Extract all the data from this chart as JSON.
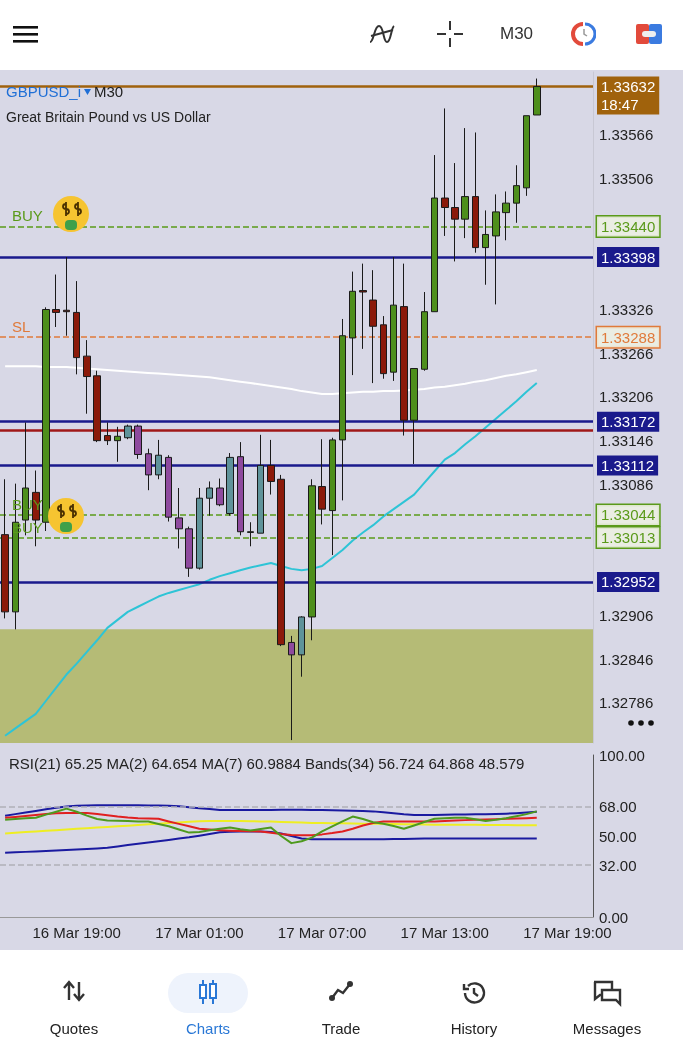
{
  "chart_data": [
    {
      "type": "candlestick",
      "title": "GBPUSD_i",
      "subtitle": "Great Britain Pound vs US Dollar",
      "annotations": [
        "M30",
        "M30",
        "Quotes",
        "Charts",
        "Trade",
        "History",
        "Messages",
        "BUY",
        "SL",
        "BUY",
        "BUY"
      ],
      "categories": [
        null,
        null,
        null,
        null,
        null,
        null,
        null,
        null,
        null,
        null,
        null,
        null,
        null,
        null,
        null,
        null,
        null,
        null,
        null,
        null,
        null,
        null,
        null,
        null,
        null,
        null,
        null,
        null,
        null,
        null,
        null,
        null,
        null,
        null,
        null,
        null,
        null,
        null,
        null,
        null,
        null,
        null,
        null,
        null,
        null,
        null,
        null,
        null,
        null,
        null,
        null,
        null,
        null,
        null,
        null,
        null,
        null,
        null
      ],
      "ohlc": [
        [
          1.33017,
          1.33093,
          1.32902,
          1.32911
        ],
        [
          1.32911,
          1.33087,
          1.32887,
          1.33034
        ],
        [
          1.33037,
          1.33171,
          1.33016,
          1.33081
        ],
        [
          1.33075,
          1.33105,
          1.33001,
          1.33037
        ],
        [
          1.33034,
          1.33329,
          1.33022,
          1.33326
        ],
        [
          1.33326,
          1.33374,
          1.33302,
          1.33322
        ],
        [
          1.33325,
          1.33398,
          1.3329,
          1.33323
        ],
        [
          1.33322,
          1.33365,
          1.33237,
          1.3326
        ],
        [
          1.33262,
          1.33284,
          1.33183,
          1.33234
        ],
        [
          1.33235,
          1.33242,
          1.33144,
          1.33146
        ],
        [
          1.33153,
          1.33171,
          1.3314,
          1.33146
        ],
        [
          1.33146,
          1.33165,
          1.33117,
          1.33152
        ],
        [
          1.3315,
          1.33168,
          1.33148,
          1.33166
        ],
        [
          1.33166,
          1.33168,
          1.33121,
          1.33127
        ],
        [
          1.33128,
          1.33135,
          1.33078,
          1.33099
        ],
        [
          1.33099,
          1.33147,
          1.33093,
          1.33126
        ],
        [
          1.33123,
          1.33126,
          1.33035,
          1.33041
        ],
        [
          1.3304,
          1.33081,
          1.32998,
          1.33025
        ],
        [
          1.33025,
          1.33028,
          1.32959,
          1.32971
        ],
        [
          1.32971,
          1.33081,
          1.32969,
          1.33067
        ],
        [
          1.33067,
          1.3309,
          1.33043,
          1.33081
        ],
        [
          1.33081,
          1.33094,
          1.33056,
          1.33058
        ],
        [
          1.33046,
          1.33129,
          1.33043,
          1.33123
        ],
        [
          1.33124,
          1.33144,
          1.33016,
          1.33021
        ],
        [
          1.3302,
          1.33034,
          1.33001,
          1.33021
        ],
        [
          1.33019,
          1.33154,
          1.33019,
          1.33112
        ],
        [
          1.33112,
          1.33147,
          1.33072,
          1.3309
        ],
        [
          1.33093,
          1.33099,
          1.32864,
          1.32866
        ],
        [
          1.32869,
          1.32878,
          1.32735,
          1.32852
        ],
        [
          1.32852,
          1.32905,
          1.32822,
          1.32904
        ],
        [
          1.32904,
          1.33093,
          1.32872,
          1.33084
        ],
        [
          1.33083,
          1.33148,
          1.33031,
          1.33052
        ],
        [
          1.3305,
          1.3315,
          1.32989,
          1.33147
        ],
        [
          1.33147,
          1.33313,
          1.33064,
          1.3329
        ],
        [
          1.33287,
          1.33378,
          1.33236,
          1.33351
        ],
        [
          1.33352,
          1.33389,
          1.33272,
          1.3335
        ],
        [
          1.33339,
          1.3338,
          1.33225,
          1.33303
        ],
        [
          1.33305,
          1.33317,
          1.33231,
          1.33238
        ],
        [
          1.3324,
          1.33398,
          1.33228,
          1.33332
        ],
        [
          1.3333,
          1.33389,
          1.33153,
          1.33174
        ],
        [
          1.33174,
          1.33245,
          1.33114,
          1.33245
        ],
        [
          1.33244,
          1.3335,
          1.33242,
          1.33323
        ],
        [
          1.33323,
          1.33538,
          1.33323,
          1.33479
        ],
        [
          1.33479,
          1.33602,
          1.33427,
          1.33466
        ],
        [
          1.33466,
          1.33527,
          1.33392,
          1.3345
        ],
        [
          1.3345,
          1.33575,
          1.33424,
          1.33481
        ],
        [
          1.33481,
          1.33569,
          1.33404,
          1.33411
        ],
        [
          1.33411,
          1.33462,
          1.3336,
          1.33429
        ],
        [
          1.33427,
          1.33484,
          1.33333,
          1.3346
        ],
        [
          1.33459,
          1.33488,
          1.33421,
          1.33472
        ],
        [
          1.33472,
          1.33524,
          1.33445,
          1.33496
        ],
        [
          1.33493,
          1.33592,
          1.33482,
          1.33592
        ],
        [
          1.33593,
          1.33643,
          1.33593,
          1.33632
        ],
        null,
        null,
        null,
        null,
        null
      ],
      "colors": [
        "#8b1a0a",
        "#4e8f1c",
        "#4e8f1c",
        "#8b1a0a",
        "#4e8f1c",
        "#8b1a0a",
        "#8b1a0a",
        "#8b1a0a",
        "#8b1a0a",
        "#8b1a0a",
        "#8b1a0a",
        "#4e8f1c",
        "#5f939a",
        "#8e4a9e",
        "#8e4a9e",
        "#5f939a",
        "#8e4a9e",
        "#8e4a9e",
        "#8e4a9e",
        "#5f939a",
        "#5f939a",
        "#8e4a9e",
        "#5f939a",
        "#8e4a9e",
        "#5f939a",
        "#5f939a",
        "#8b1a0a",
        "#8b1a0a",
        "#8e4a9e",
        "#5f939a",
        "#4e8f1c",
        "#8b1a0a",
        "#4e8f1c",
        "#4e8f1c",
        "#4e8f1c",
        "#8b1a0a",
        "#8b1a0a",
        "#8b1a0a",
        "#4e8f1c",
        "#8b1a0a",
        "#4e8f1c",
        "#4e8f1c",
        "#4e8f1c",
        "#8b1a0a",
        "#8b1a0a",
        "#4e8f1c",
        "#8b1a0a",
        "#4e8f1c",
        "#4e8f1c",
        "#4e8f1c",
        "#4e8f1c",
        "#4e8f1c",
        "#4e8f1c",
        null,
        null,
        null,
        null,
        null
      ],
      "series": [
        {
          "type": "line",
          "color": "#ffffff",
          "values": [
            1.33248,
            1.33248,
            1.33248,
            1.33248,
            1.33247,
            1.33247,
            1.33247,
            1.33246,
            1.33245,
            1.33244,
            1.33243,
            1.33242,
            1.33241,
            1.3324,
            1.33239,
            1.33238,
            1.33237,
            1.33236,
            1.33235,
            1.33234,
            1.33233,
            1.33231,
            1.33229,
            1.33227,
            1.33225,
            1.33223,
            1.33221,
            1.33219,
            1.33217,
            1.33214,
            1.33212,
            1.3321,
            1.3321,
            1.33211,
            1.33212,
            1.33213,
            1.33213,
            1.33214,
            1.33214,
            1.33215,
            1.33216,
            1.33217,
            1.33219,
            1.3322,
            1.33222,
            1.33224,
            1.33227,
            1.33229,
            1.33232,
            1.33235,
            1.33237,
            1.3324,
            1.33243,
            null,
            null,
            null,
            null,
            null
          ]
        },
        {
          "type": "line",
          "color": "#2ec4d6",
          "values": [
            1.32741,
            1.32751,
            1.32761,
            1.32771,
            1.32789,
            1.32807,
            1.32825,
            1.3284,
            1.32856,
            1.32872,
            1.32889,
            1.329,
            1.32911,
            1.32918,
            1.32925,
            1.32932,
            1.32937,
            1.32941,
            1.32945,
            1.32949,
            1.32955,
            1.3296,
            1.32964,
            1.32968,
            1.32972,
            1.32975,
            1.32978,
            1.32974,
            1.3297,
            1.32968,
            1.3297,
            1.32974,
            1.32985,
            1.32996,
            1.33009,
            1.3302,
            1.3303,
            1.33042,
            1.33052,
            1.33062,
            1.33072,
            1.33088,
            1.33104,
            1.3312,
            1.33129,
            1.33141,
            1.33152,
            1.33164,
            1.33176,
            1.33188,
            1.332,
            1.33213,
            1.33225,
            null,
            null,
            null,
            null,
            null
          ]
        }
      ],
      "ref_lines": [
        {
          "axis": "y",
          "value": 1.33632,
          "label": "1.33632\n18:47",
          "color": "#a0620c",
          "line_style": "solid"
        },
        {
          "axis": "y",
          "value": 1.3344,
          "label": "1.33440",
          "color": "#5a9a1a",
          "line_style": "dashed"
        },
        {
          "axis": "y",
          "value": 1.33398,
          "label": "1.33398",
          "color": "#1a1a8c",
          "line_style": "solid"
        },
        {
          "axis": "y",
          "value": 1.33288,
          "label": "1.33288",
          "color": "#e07a3a",
          "line_style": "dashed"
        },
        {
          "axis": "y",
          "value": 1.33172,
          "label": "1.33172",
          "color": "#1a1a8c",
          "line_style": "solid"
        },
        {
          "axis": "y",
          "value": 1.3316,
          "color": "#a01818",
          "line_style": "solid"
        },
        {
          "axis": "y",
          "value": 1.33112,
          "label": "1.33112",
          "color": "#1a1a8c",
          "line_style": "solid"
        },
        {
          "axis": "y",
          "value": 1.33044,
          "label": "1.33044",
          "color": "#5a9a1a",
          "line_style": "dashed"
        },
        {
          "axis": "y",
          "value": 1.33013,
          "label": "1.33013",
          "color": "#5a9a1a",
          "line_style": "dashed"
        },
        {
          "axis": "y",
          "value": 1.32952,
          "label": "1.32952",
          "color": "#1a1a8c",
          "line_style": "solid"
        }
      ],
      "bands": [
        {
          "axis": "y",
          "from": 1.32731,
          "to": 1.32887,
          "color": "#b5bb76"
        }
      ],
      "ylim": [
        1.32731,
        1.33652
      ],
      "yticks": [
        1.32786,
        1.32846,
        1.32906,
        1.33086,
        1.33146,
        1.33206,
        1.33266,
        1.33326,
        1.33506,
        1.33566
      ],
      "tick_labels": "y",
      "marker": "none",
      "grid": false
    },
    {
      "type": "line",
      "title": "RSI(21) 65.25 MA(2) 64.654 MA(7) 60.9884 Bands(34) 56.724 64.868 48.579",
      "categories": [
        null,
        null,
        null,
        null,
        null,
        null,
        null,
        "16 Mar 19:00",
        null,
        null,
        null,
        null,
        null,
        null,
        null,
        null,
        null,
        null,
        null,
        "17 Mar 01:00",
        null,
        null,
        null,
        null,
        null,
        null,
        null,
        null,
        null,
        null,
        null,
        "17 Mar 07:00",
        null,
        null,
        null,
        null,
        null,
        null,
        null,
        null,
        null,
        null,
        null,
        "17 Mar 13:00",
        null,
        null,
        null,
        null,
        null,
        null,
        null,
        null,
        null,
        null,
        null,
        "17 Mar 19:00",
        null,
        null
      ],
      "series": [
        {
          "color": "#1a1aa0",
          "values": [
            62.5,
            63.5,
            64.5,
            65.5,
            66.5,
            67.5,
            68.2,
            68.6,
            68.9,
            69,
            69,
            69,
            69,
            69,
            68.9,
            68.8,
            68.6,
            68.3,
            67.8,
            67.2,
            66.6,
            66.1,
            66,
            66,
            66,
            66,
            66.1,
            66.2,
            66.2,
            66.2,
            66.1,
            66,
            65.9,
            65.8,
            65.6,
            65.4,
            65.2,
            64.6,
            64,
            63.4,
            63,
            63,
            63,
            63.1,
            63.2,
            63.3,
            63.4,
            63.5,
            63.6,
            63.8,
            64.1,
            64.5,
            64.9,
            null,
            null,
            null,
            null,
            null
          ]
        },
        {
          "color": "#1a1aa0",
          "values": [
            39.6,
            39.9,
            40.2,
            40.5,
            40.8,
            41.1,
            41.4,
            41.7,
            42,
            42.3,
            42.7,
            43.5,
            44.4,
            45.2,
            46,
            46.8,
            47.6,
            48.4,
            49.2,
            50.2,
            51.2,
            52.3,
            52.6,
            52.8,
            52.8,
            52.8,
            52.5,
            51.5,
            50,
            48.5,
            48,
            48,
            48,
            48,
            48,
            48,
            48,
            48,
            48.1,
            48.2,
            48.3,
            48.4,
            48.5,
            48.5,
            48.5,
            48.5,
            48.5,
            48.5,
            48.5,
            48.5,
            48.5,
            48.5,
            48.5,
            null,
            null,
            null,
            null,
            null
          ]
        },
        {
          "color": "#eeee22",
          "values": [
            51.6,
            52,
            52.4,
            52.8,
            53.2,
            53.6,
            54,
            54.4,
            54.8,
            55.2,
            55.6,
            56,
            56.4,
            56.8,
            57.2,
            57.6,
            58,
            58.4,
            58.8,
            59.1,
            59.3,
            59.3,
            59.3,
            59.2,
            59.1,
            59,
            58.9,
            58.7,
            58.5,
            58.3,
            58.1,
            58,
            57.9,
            57.8,
            57.7,
            57.6,
            57.6,
            57.5,
            57.4,
            57.3,
            57.2,
            57.1,
            57,
            57,
            57,
            56.9,
            56.9,
            56.8,
            56.8,
            56.8,
            56.7,
            56.7,
            56.7,
            null,
            null,
            null,
            null,
            null
          ]
        },
        {
          "color": "#e02020",
          "values": [
            61.3,
            61.8,
            62.4,
            63,
            63.6,
            64,
            64.2,
            64.2,
            64.2,
            63.6,
            62.8,
            62,
            61.4,
            61,
            60.8,
            60.6,
            59,
            57.5,
            56,
            54.5,
            54,
            53.6,
            53.3,
            53.1,
            53,
            52.8,
            52,
            51.2,
            50.6,
            50.4,
            50.5,
            51,
            51.8,
            52.8,
            54.5,
            56.5,
            58,
            58.9,
            59,
            59,
            58.9,
            58.9,
            58.9,
            59.2,
            59.5,
            59.8,
            60,
            60.2,
            60.4,
            60.6,
            60.8,
            61,
            61.3,
            null,
            null,
            null,
            null,
            null
          ]
        },
        {
          "color": "#4e9a1e",
          "values": [
            60,
            60.5,
            60.9,
            61.3,
            63.2,
            65,
            66.9,
            65,
            62.6,
            60.5,
            59.6,
            59.4,
            59.2,
            59,
            58.9,
            57.4,
            56,
            54,
            52.1,
            52.5,
            53.5,
            54.5,
            55.2,
            54.2,
            53.4,
            54.3,
            55.2,
            50,
            45.6,
            46.8,
            49,
            52.8,
            56,
            59,
            62,
            60.5,
            58.5,
            57.6,
            56.2,
            54.5,
            56.5,
            58.6,
            60.6,
            61,
            61.3,
            61.3,
            60.4,
            59.3,
            60,
            61,
            62.2,
            63.5,
            65.2,
            null,
            null,
            null,
            null,
            null
          ]
        }
      ],
      "ref_lines": [
        {
          "axis": "y",
          "value": 68,
          "color": "#b0b0b8",
          "line_style": "dashed"
        },
        {
          "axis": "y",
          "value": 32,
          "color": "#b0b0b8",
          "line_style": "dashed"
        }
      ],
      "ylim": [
        0,
        100
      ],
      "yticks": [
        {
          "value": 0,
          "label": "0.00"
        },
        {
          "value": 32,
          "label": "32.00"
        },
        {
          "value": 50,
          "label": "50.00"
        },
        {
          "value": 68,
          "label": "68.00"
        },
        {
          "value": 100,
          "label": "100.00"
        }
      ],
      "marker": "none",
      "grid": false
    }
  ]
}
